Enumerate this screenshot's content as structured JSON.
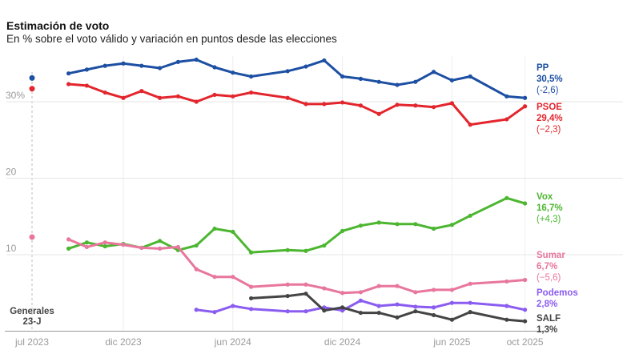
{
  "title": "Estimación de voto",
  "subtitle": "En % sobre el voto válido y variación en puntos desde las elecciones",
  "chart_data": {
    "type": "line",
    "title": "Estimación de voto",
    "subtitle": "En % sobre el voto válido y variación en puntos desde las elecciones",
    "xlabel": "",
    "ylabel": "",
    "ylim": [
      0,
      36
    ],
    "yticks": [
      {
        "value": 10,
        "label": "10"
      },
      {
        "value": 20,
        "label": "20"
      },
      {
        "value": 30,
        "label": "30%"
      }
    ],
    "xticks": [
      {
        "value": "2023-07",
        "label": "jul 2023"
      },
      {
        "value": "2023-12",
        "label": "dic 2023"
      },
      {
        "value": "2024-06",
        "label": "jun 2024"
      },
      {
        "value": "2024-12",
        "label": "dic 2024"
      },
      {
        "value": "2025-06",
        "label": "jun 2025"
      },
      {
        "value": "2025-10",
        "label": "oct 2025"
      }
    ],
    "grid": true,
    "legend": "right, direct labels",
    "election": {
      "date": "2023-07",
      "label_line1": "Generales",
      "label_line2": "23-J",
      "values": [
        {
          "party": "PP",
          "value": 33.1,
          "color": "#1d4fa3"
        },
        {
          "party": "PSOE",
          "value": 31.7,
          "color": "#e3262d"
        },
        {
          "party": "Sumar",
          "value": 12.3,
          "color": "#e8769d"
        }
      ]
    },
    "series": [
      {
        "name": "PP",
        "color": "#1d4fa3",
        "last": "30,5%",
        "change": "(-2,6)",
        "x": [
          "2023-09",
          "2023-10",
          "2023-11",
          "2023-12",
          "2024-01",
          "2024-02",
          "2024-03",
          "2024-04",
          "2024-05",
          "2024-06",
          "2024-07",
          "2024-09",
          "2024-10",
          "2024-11",
          "2024-12",
          "2025-01",
          "2025-02",
          "2025-03",
          "2025-04",
          "2025-05",
          "2025-06",
          "2025-07",
          "2025-09",
          "2025-10"
        ],
        "values": [
          33.7,
          34.2,
          34.7,
          35.0,
          34.7,
          34.4,
          35.2,
          35.5,
          34.5,
          33.8,
          33.3,
          34.0,
          34.6,
          35.4,
          33.3,
          33.0,
          32.6,
          32.2,
          32.6,
          33.9,
          32.8,
          33.3,
          30.7,
          30.5
        ]
      },
      {
        "name": "PSOE",
        "color": "#e3262d",
        "last": "29,4%",
        "change": "(−2,3)",
        "x": [
          "2023-09",
          "2023-10",
          "2023-11",
          "2023-12",
          "2024-01",
          "2024-02",
          "2024-03",
          "2024-04",
          "2024-05",
          "2024-06",
          "2024-07",
          "2024-09",
          "2024-10",
          "2024-11",
          "2024-12",
          "2025-01",
          "2025-02",
          "2025-03",
          "2025-04",
          "2025-05",
          "2025-06",
          "2025-07",
          "2025-09",
          "2025-10"
        ],
        "values": [
          32.3,
          32.1,
          31.2,
          30.5,
          31.4,
          30.5,
          30.7,
          30.0,
          30.9,
          30.7,
          31.2,
          30.5,
          29.7,
          29.7,
          29.9,
          29.5,
          28.4,
          29.6,
          29.5,
          29.3,
          29.8,
          27.0,
          27.7,
          29.4
        ]
      },
      {
        "name": "Vox",
        "color": "#4cb630",
        "last": "16,7%",
        "change": "(+4,3)",
        "x": [
          "2023-09",
          "2023-10",
          "2023-11",
          "2023-12",
          "2024-01",
          "2024-02",
          "2024-03",
          "2024-04",
          "2024-05",
          "2024-06",
          "2024-07",
          "2024-09",
          "2024-10",
          "2024-11",
          "2024-12",
          "2025-01",
          "2025-02",
          "2025-03",
          "2025-04",
          "2025-05",
          "2025-06",
          "2025-07",
          "2025-09",
          "2025-10"
        ],
        "values": [
          10.8,
          11.6,
          11.1,
          11.4,
          10.9,
          11.8,
          10.6,
          11.2,
          13.4,
          13.0,
          10.3,
          10.6,
          10.5,
          11.2,
          13.1,
          13.8,
          14.2,
          14.0,
          14.0,
          13.4,
          13.9,
          15.1,
          17.4,
          16.7
        ]
      },
      {
        "name": "Sumar",
        "color": "#e8769d",
        "last": "6,7%",
        "change": "(−5,6)",
        "x": [
          "2023-09",
          "2023-10",
          "2023-11",
          "2023-12",
          "2024-01",
          "2024-02",
          "2024-03",
          "2024-04",
          "2024-05",
          "2024-06",
          "2024-07",
          "2024-09",
          "2024-10",
          "2024-11",
          "2024-12",
          "2025-01",
          "2025-02",
          "2025-03",
          "2025-04",
          "2025-05",
          "2025-06",
          "2025-07",
          "2025-09",
          "2025-10"
        ],
        "values": [
          12.0,
          11.0,
          11.6,
          11.3,
          10.9,
          10.8,
          11.0,
          8.1,
          7.1,
          7.1,
          5.8,
          6.1,
          6.1,
          5.6,
          5.0,
          5.1,
          5.9,
          5.9,
          5.1,
          5.4,
          5.4,
          6.2,
          6.5,
          6.7
        ]
      },
      {
        "name": "Podemos",
        "color": "#8a5cf0",
        "last": "2,8%",
        "change": "",
        "x": [
          "2024-04",
          "2024-05",
          "2024-06",
          "2024-07",
          "2024-09",
          "2024-10",
          "2024-11",
          "2024-12",
          "2025-01",
          "2025-02",
          "2025-03",
          "2025-04",
          "2025-05",
          "2025-06",
          "2025-07",
          "2025-09",
          "2025-10"
        ],
        "values": [
          2.8,
          2.5,
          3.3,
          2.9,
          2.6,
          2.6,
          3.1,
          2.7,
          4.0,
          3.3,
          3.5,
          3.2,
          3.1,
          3.7,
          3.7,
          3.3,
          2.8
        ]
      },
      {
        "name": "SALF",
        "color": "#444444",
        "last": "1,3%",
        "change": "",
        "x": [
          "2024-07",
          "2024-09",
          "2024-10",
          "2024-11",
          "2024-12",
          "2025-01",
          "2025-02",
          "2025-03",
          "2025-04",
          "2025-05",
          "2025-06",
          "2025-07",
          "2025-09",
          "2025-10"
        ],
        "values": [
          4.3,
          4.6,
          4.9,
          2.7,
          3.1,
          2.4,
          2.4,
          1.8,
          2.6,
          2.1,
          1.5,
          2.5,
          1.5,
          1.3
        ]
      }
    ]
  }
}
